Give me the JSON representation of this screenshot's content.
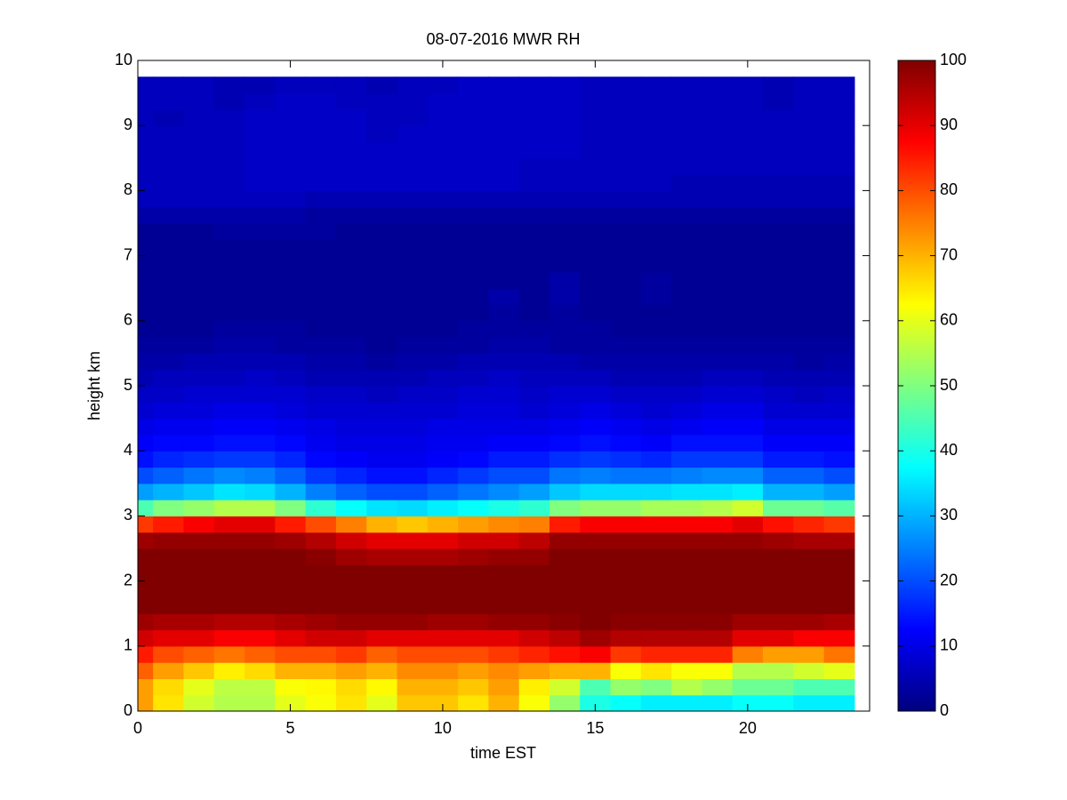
{
  "chart_data": {
    "type": "heatmap",
    "title": "08-07-2016 MWR RH",
    "x_label": "time EST",
    "y_label": "height km",
    "xlim": [
      0,
      24
    ],
    "ylim": [
      0,
      10
    ],
    "xticks": [
      0,
      5,
      10,
      15,
      20
    ],
    "yticks": [
      0,
      1,
      2,
      3,
      4,
      5,
      6,
      7,
      8,
      9,
      10
    ],
    "clim": [
      0,
      100
    ],
    "cticks": [
      0,
      10,
      20,
      30,
      40,
      50,
      60,
      70,
      80,
      90,
      100
    ],
    "colormap": "jet",
    "x": [
      0,
      1,
      2,
      3,
      4,
      5,
      6,
      7,
      8,
      9,
      10,
      11,
      12,
      13,
      14,
      15,
      16,
      17,
      18,
      19,
      20,
      21,
      22,
      23
    ],
    "y": [
      0.125,
      0.375,
      0.625,
      0.875,
      1.125,
      1.375,
      1.625,
      1.875,
      2.125,
      2.375,
      2.625,
      2.875,
      3.125,
      3.375,
      3.625,
      3.875,
      4.125,
      4.375,
      4.625,
      4.875,
      5.125,
      5.375,
      5.625,
      5.875,
      6.125,
      6.375,
      6.625,
      6.875,
      7.125,
      7.375,
      7.625,
      7.875,
      8.125,
      8.375,
      8.625,
      8.875,
      9.125,
      9.375,
      9.625
    ],
    "z": [
      [
        72,
        65,
        58,
        55,
        55,
        60,
        62,
        65,
        60,
        68,
        68,
        65,
        70,
        62,
        52,
        40,
        38,
        36,
        36,
        36,
        38,
        38,
        36,
        36
      ],
      [
        72,
        66,
        60,
        56,
        56,
        62,
        63,
        66,
        63,
        70,
        70,
        68,
        72,
        64,
        58,
        45,
        52,
        50,
        55,
        52,
        48,
        48,
        45,
        45
      ],
      [
        78,
        72,
        68,
        64,
        66,
        70,
        70,
        72,
        70,
        74,
        74,
        72,
        74,
        72,
        70,
        70,
        62,
        65,
        62,
        62,
        55,
        55,
        58,
        60
      ],
      [
        85,
        80,
        78,
        76,
        78,
        80,
        80,
        82,
        78,
        80,
        80,
        80,
        82,
        84,
        86,
        88,
        82,
        84,
        84,
        84,
        75,
        72,
        72,
        76
      ],
      [
        92,
        90,
        90,
        88,
        88,
        90,
        92,
        92,
        90,
        90,
        90,
        90,
        90,
        92,
        94,
        97,
        95,
        95,
        95,
        95,
        90,
        90,
        88,
        88
      ],
      [
        97,
        96,
        96,
        95,
        95,
        96,
        97,
        98,
        98,
        98,
        97,
        97,
        98,
        98,
        99,
        100,
        99,
        99,
        99,
        99,
        97,
        97,
        97,
        96
      ],
      [
        100,
        100,
        100,
        100,
        100,
        100,
        100,
        100,
        100,
        100,
        100,
        100,
        100,
        100,
        100,
        100,
        100,
        100,
        100,
        100,
        100,
        100,
        100,
        100
      ],
      [
        100,
        100,
        100,
        100,
        100,
        100,
        100,
        100,
        100,
        100,
        100,
        100,
        100,
        100,
        100,
        100,
        100,
        100,
        100,
        100,
        100,
        100,
        100,
        100
      ],
      [
        100,
        100,
        100,
        100,
        100,
        100,
        100,
        100,
        100,
        100,
        100,
        100,
        100,
        100,
        100,
        100,
        100,
        100,
        100,
        100,
        100,
        100,
        100,
        100
      ],
      [
        100,
        100,
        100,
        100,
        100,
        100,
        99,
        97,
        96,
        96,
        96,
        97,
        98,
        98,
        100,
        100,
        100,
        100,
        100,
        100,
        100,
        100,
        100,
        100
      ],
      [
        97,
        98,
        98,
        98,
        98,
        97,
        95,
        92,
        90,
        90,
        90,
        92,
        92,
        94,
        98,
        98,
        98,
        98,
        98,
        98,
        98,
        97,
        96,
        96
      ],
      [
        82,
        85,
        88,
        90,
        90,
        85,
        80,
        75,
        70,
        68,
        70,
        72,
        74,
        75,
        85,
        88,
        88,
        88,
        88,
        88,
        90,
        86,
        84,
        82
      ],
      [
        45,
        50,
        52,
        55,
        55,
        50,
        42,
        38,
        35,
        34,
        36,
        38,
        40,
        42,
        50,
        52,
        52,
        54,
        54,
        55,
        58,
        48,
        48,
        46
      ],
      [
        28,
        30,
        32,
        35,
        34,
        30,
        25,
        22,
        20,
        20,
        22,
        24,
        26,
        28,
        32,
        34,
        34,
        34,
        35,
        35,
        36,
        30,
        30,
        28
      ],
      [
        20,
        22,
        24,
        26,
        25,
        22,
        18,
        16,
        14,
        14,
        16,
        18,
        20,
        20,
        24,
        25,
        24,
        24,
        25,
        26,
        26,
        22,
        22,
        20
      ],
      [
        14,
        16,
        17,
        18,
        18,
        16,
        13,
        12,
        11,
        11,
        12,
        13,
        15,
        15,
        17,
        18,
        17,
        16,
        18,
        18,
        18,
        15,
        15,
        14
      ],
      [
        12,
        13,
        13,
        14,
        14,
        13,
        11,
        10,
        10,
        10,
        11,
        11,
        12,
        12,
        13,
        14,
        13,
        12,
        14,
        14,
        14,
        12,
        12,
        12
      ],
      [
        10,
        11,
        11,
        12,
        12,
        11,
        10,
        9,
        9,
        9,
        10,
        10,
        10,
        10,
        11,
        12,
        11,
        10,
        11,
        12,
        12,
        10,
        10,
        10
      ],
      [
        8,
        9,
        9,
        10,
        10,
        9,
        8,
        8,
        8,
        8,
        8,
        9,
        9,
        8,
        9,
        10,
        9,
        8,
        9,
        10,
        10,
        8,
        8,
        8
      ],
      [
        7,
        7,
        8,
        8,
        8,
        8,
        7,
        7,
        6,
        7,
        7,
        8,
        8,
        7,
        8,
        8,
        7,
        7,
        7,
        8,
        8,
        7,
        6,
        7
      ],
      [
        5,
        6,
        6,
        6,
        7,
        6,
        5,
        5,
        5,
        5,
        6,
        6,
        7,
        6,
        6,
        6,
        5,
        5,
        5,
        6,
        6,
        5,
        5,
        5
      ],
      [
        4,
        4,
        5,
        5,
        5,
        5,
        4,
        4,
        3,
        4,
        4,
        5,
        5,
        5,
        5,
        4,
        4,
        4,
        4,
        4,
        4,
        4,
        3,
        4
      ],
      [
        3,
        3,
        3,
        4,
        4,
        3,
        3,
        3,
        2,
        3,
        3,
        3,
        4,
        4,
        3,
        3,
        3,
        3,
        3,
        3,
        3,
        3,
        3,
        3
      ],
      [
        2,
        2,
        2,
        3,
        3,
        3,
        2,
        2,
        2,
        2,
        2,
        3,
        3,
        3,
        3,
        3,
        2,
        2,
        2,
        2,
        2,
        2,
        2,
        2
      ],
      [
        2,
        2,
        2,
        2,
        2,
        2,
        2,
        2,
        2,
        2,
        2,
        2,
        3,
        2,
        3,
        2,
        2,
        2,
        2,
        2,
        2,
        2,
        2,
        2
      ],
      [
        2,
        2,
        2,
        2,
        2,
        2,
        2,
        2,
        2,
        2,
        2,
        2,
        4,
        2,
        4,
        2,
        2,
        3,
        2,
        2,
        2,
        2,
        2,
        2
      ],
      [
        2,
        2,
        2,
        2,
        2,
        2,
        2,
        2,
        2,
        2,
        2,
        2,
        2,
        2,
        4,
        2,
        2,
        3,
        2,
        2,
        2,
        2,
        2,
        2
      ],
      [
        2,
        2,
        2,
        2,
        2,
        2,
        2,
        2,
        2,
        2,
        2,
        2,
        2,
        2,
        2,
        2,
        2,
        2,
        2,
        2,
        2,
        2,
        2,
        2
      ],
      [
        2,
        2,
        2,
        2,
        2,
        2,
        2,
        2,
        2,
        2,
        2,
        2,
        2,
        2,
        2,
        2,
        2,
        2,
        2,
        2,
        2,
        2,
        2,
        2
      ],
      [
        2,
        2,
        2,
        3,
        3,
        3,
        3,
        2,
        2,
        2,
        2,
        2,
        2,
        2,
        2,
        2,
        2,
        2,
        2,
        2,
        2,
        2,
        2,
        2
      ],
      [
        4,
        4,
        4,
        4,
        4,
        4,
        3,
        3,
        3,
        3,
        3,
        3,
        3,
        3,
        3,
        3,
        3,
        3,
        3,
        3,
        3,
        3,
        3,
        3
      ],
      [
        6,
        6,
        6,
        6,
        6,
        6,
        5,
        5,
        5,
        5,
        5,
        5,
        5,
        5,
        5,
        5,
        5,
        5,
        5,
        5,
        5,
        5,
        5,
        5
      ],
      [
        6,
        6,
        6,
        6,
        7,
        7,
        7,
        7,
        7,
        7,
        7,
        7,
        7,
        6,
        6,
        6,
        6,
        6,
        5,
        5,
        5,
        5,
        5,
        5
      ],
      [
        6,
        6,
        6,
        6,
        7,
        7,
        7,
        7,
        7,
        7,
        7,
        7,
        7,
        6,
        6,
        6,
        6,
        6,
        6,
        6,
        6,
        6,
        6,
        6
      ],
      [
        6,
        6,
        6,
        6,
        7,
        7,
        7,
        7,
        7,
        7,
        7,
        7,
        7,
        7,
        7,
        6,
        6,
        6,
        6,
        6,
        6,
        6,
        6,
        6
      ],
      [
        6,
        6,
        6,
        6,
        7,
        7,
        7,
        7,
        6,
        7,
        7,
        7,
        7,
        7,
        7,
        6,
        6,
        6,
        6,
        6,
        6,
        6,
        6,
        6
      ],
      [
        6,
        5,
        6,
        6,
        7,
        7,
        7,
        7,
        6,
        6,
        7,
        7,
        7,
        7,
        7,
        6,
        6,
        6,
        6,
        6,
        6,
        6,
        6,
        6
      ],
      [
        6,
        6,
        6,
        5,
        6,
        7,
        7,
        6,
        6,
        6,
        7,
        7,
        7,
        7,
        7,
        6,
        6,
        6,
        6,
        6,
        6,
        5,
        6,
        6
      ],
      [
        6,
        6,
        6,
        5,
        5,
        6,
        6,
        6,
        5,
        6,
        6,
        7,
        7,
        7,
        7,
        6,
        6,
        6,
        6,
        6,
        6,
        5,
        6,
        6
      ]
    ]
  }
}
